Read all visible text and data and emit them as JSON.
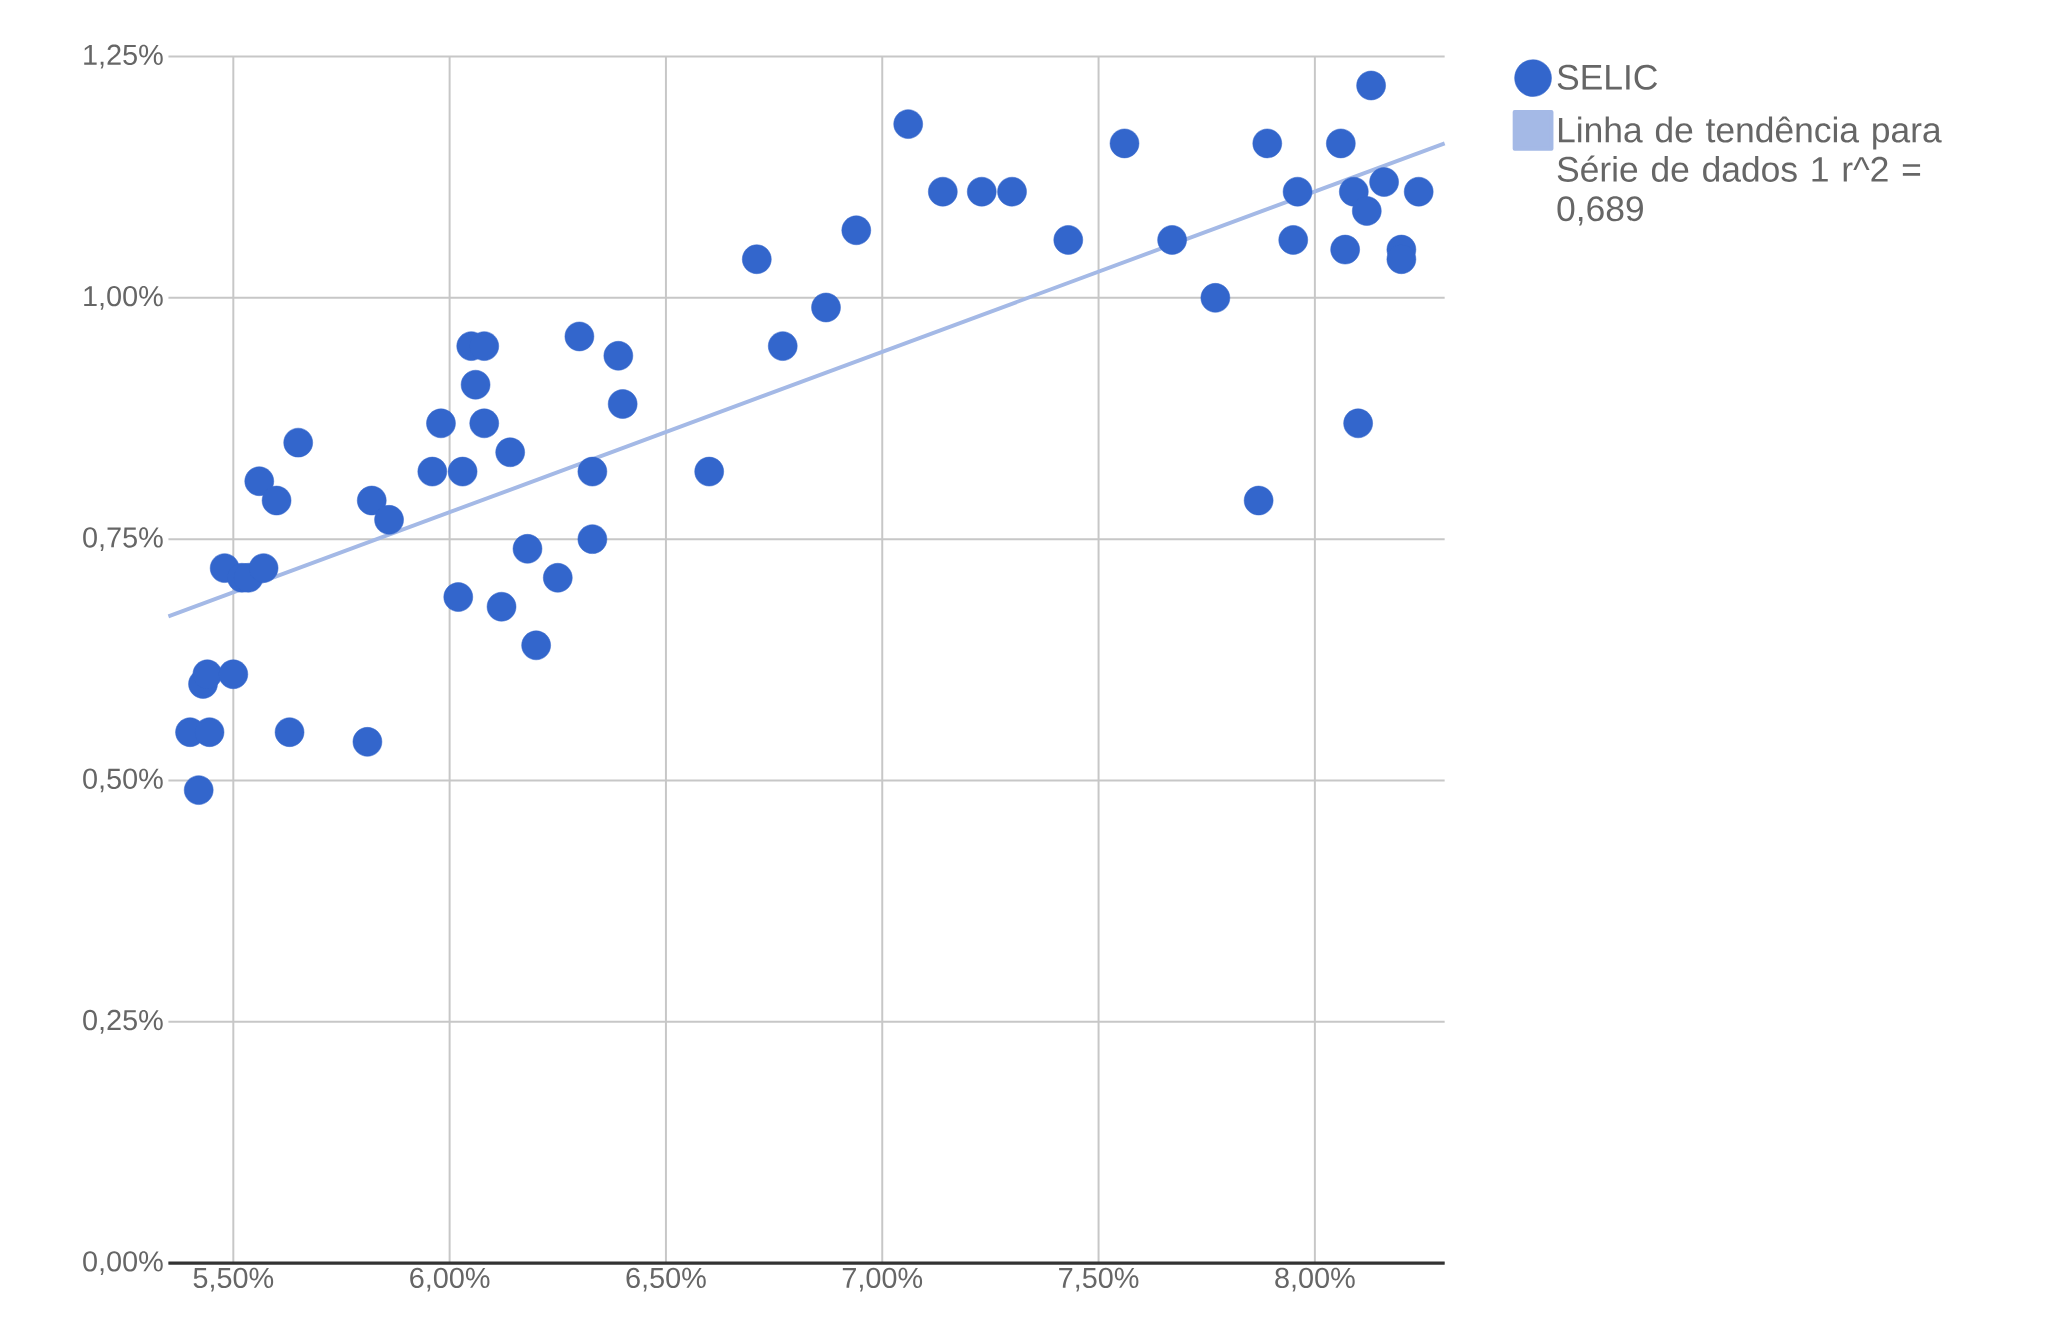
{
  "chart_data": {
    "type": "scatter",
    "xlim": [
      5.35,
      8.3
    ],
    "ylim": [
      0,
      1.25
    ],
    "xticks": [
      {
        "value": 5.5,
        "label": "5,50%"
      },
      {
        "value": 6.0,
        "label": "6,00%"
      },
      {
        "value": 6.5,
        "label": "6,50%"
      },
      {
        "value": 7.0,
        "label": "7,00%"
      },
      {
        "value": 7.5,
        "label": "7,50%"
      },
      {
        "value": 8.0,
        "label": "8,00%"
      }
    ],
    "yticks": [
      {
        "value": 0,
        "label": "0,00%"
      },
      {
        "value": 0.25,
        "label": "0,25%"
      },
      {
        "value": 0.5,
        "label": "0,50%"
      },
      {
        "value": 0.75,
        "label": "0,75%"
      },
      {
        "value": 1.0,
        "label": "1,00%"
      },
      {
        "value": 1.25,
        "label": "1,25%"
      }
    ],
    "grid": true,
    "legend": "top right",
    "marker": "circle",
    "series": [
      {
        "name": "SELIC",
        "color": "#3366cc",
        "x": [
          5.4,
          5.445,
          5.42,
          5.43,
          5.44,
          5.5,
          5.48,
          5.52,
          5.535,
          5.57,
          5.56,
          5.6,
          5.65,
          5.63,
          5.81,
          5.82,
          5.86,
          5.96,
          5.98,
          6.02,
          6.03,
          6.05,
          6.08,
          6.06,
          6.08,
          6.12,
          6.14,
          6.18,
          6.2,
          6.25,
          6.3,
          6.33,
          6.33,
          6.39,
          6.4,
          6.6,
          6.71,
          6.77,
          6.87,
          6.94,
          7.06,
          7.14,
          7.23,
          7.3,
          7.43,
          7.56,
          7.67,
          7.77,
          7.87,
          7.89,
          7.95,
          7.96,
          8.06,
          8.07,
          8.09,
          8.1,
          8.12,
          8.13,
          8.16,
          8.2,
          8.2,
          8.24
        ],
        "values": [
          0.55,
          0.55,
          0.49,
          0.6,
          0.61,
          0.61,
          0.72,
          0.71,
          0.71,
          0.72,
          0.81,
          0.79,
          0.85,
          0.55,
          0.54,
          0.79,
          0.77,
          0.82,
          0.87,
          0.69,
          0.82,
          0.95,
          0.95,
          0.91,
          0.87,
          0.68,
          0.84,
          0.74,
          0.64,
          0.71,
          0.96,
          0.82,
          0.75,
          0.94,
          0.89,
          0.82,
          1.04,
          0.95,
          0.99,
          1.07,
          1.18,
          1.11,
          1.11,
          1.11,
          1.06,
          1.16,
          1.06,
          1.0,
          0.79,
          1.16,
          1.06,
          1.11,
          1.16,
          1.05,
          1.11,
          0.87,
          1.09,
          1.22,
          1.12,
          1.05,
          1.04,
          1.11
        ]
      },
      {
        "name": "Linha de tendência para Série de dados 1 r^2 = 0,689",
        "type": "line",
        "color": "#a4b9e6",
        "line_style": "solid",
        "marker": "none",
        "x": [
          5.35,
          8.3
        ],
        "values": [
          0.67,
          1.16
        ]
      }
    ]
  }
}
